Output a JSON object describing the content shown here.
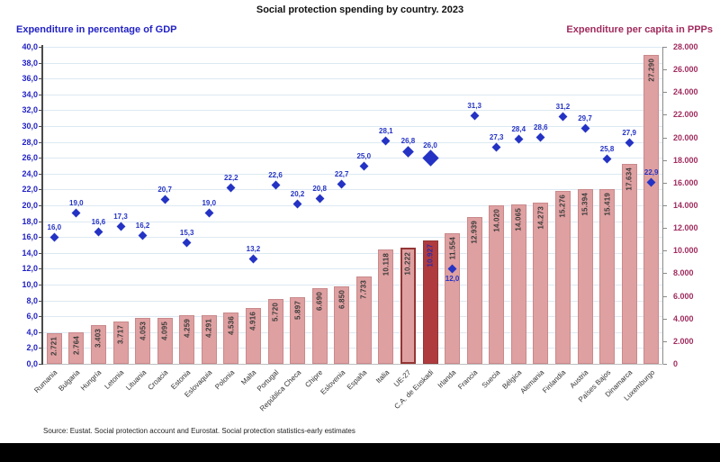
{
  "title": "Social protection spending by country. 2023",
  "source_note": "Source: Eustat. Social protection account and Eurostat. Social protection statistics-early estimates",
  "colors": {
    "left_axis_blue": "#2222C6",
    "point_blue": "#2433C4",
    "right_axis_maroon": "#A02B5E",
    "bar_fill": "#DFA0A1",
    "bar_border": "#C9898B",
    "highlight_border": "#943634",
    "euskadi_fill": "#B03B3E",
    "euskadi_value_label": "#2B2BA8",
    "bar_value_label": "#3A3A3A",
    "gridline": "#DCE9F2",
    "category_label": "#333333"
  },
  "chart_data": {
    "type": "combo bar + scatter (dual axis)",
    "title": "Social protection spending by country. 2023",
    "grid": true,
    "legend_position": "none",
    "categories": [
      "Rumania",
      "Bulgaria",
      "Hungría",
      "Letonia",
      "Lituania",
      "Croacia",
      "Estonia",
      "Eslovaquia",
      "Polonia",
      "Malta",
      "Portugal",
      "República Checa",
      "Chipre",
      "Eslovenia",
      "España",
      "Italia",
      "UE-27",
      "C.A. de Euskadi",
      "Irlanda",
      "Francia",
      "Suecia",
      "Bélgica",
      "Alemania",
      "Finlandia",
      "Austria",
      "Países Bajos",
      "Dinamarca",
      "Luxemburgo"
    ],
    "series": [
      {
        "name": "Expenditure per capita in PPPs",
        "type": "bar",
        "axis": "right",
        "values": [
          2721,
          2764,
          3403,
          3717,
          4053,
          4095,
          4259,
          4291,
          4536,
          4916,
          5720,
          5897,
          6690,
          6850,
          7733,
          10118,
          10222,
          10927,
          11554,
          12939,
          14020,
          14065,
          14273,
          15276,
          15394,
          15419,
          17634,
          27290
        ],
        "labels": [
          "2.721",
          "2.764",
          "3.403",
          "3.717",
          "4.053",
          "4.095",
          "4.259",
          "4.291",
          "4.536",
          "4.916",
          "5.720",
          "5.897",
          "6.690",
          "6.850",
          "7.733",
          "10.118",
          "10.222",
          "10.927",
          "11.554",
          "12.939",
          "14.020",
          "14.065",
          "14.273",
          "15.276",
          "15.394",
          "15.419",
          "17.634",
          "27.290"
        ]
      },
      {
        "name": "Expenditure in percentage of GDP",
        "type": "scatter",
        "axis": "left",
        "values": [
          16.0,
          19.0,
          16.6,
          17.3,
          16.2,
          20.7,
          15.3,
          19.0,
          22.2,
          13.2,
          22.6,
          20.2,
          20.8,
          22.7,
          25.0,
          28.1,
          26.8,
          26.0,
          12.0,
          31.3,
          27.3,
          28.4,
          28.6,
          31.2,
          29.7,
          25.8,
          27.9,
          22.9
        ],
        "labels": [
          "16,0",
          "19,0",
          "16,6",
          "17,3",
          "16,2",
          "20,7",
          "15,3",
          "19,0",
          "22,2",
          "13,2",
          "22,6",
          "20,2",
          "20,8",
          "22,7",
          "25,0",
          "28,1",
          "26,8",
          "26,0",
          "12,0",
          "31,3",
          "27,3",
          "28,4",
          "28,6",
          "31,2",
          "29,7",
          "25,8",
          "27,9",
          "22,9"
        ]
      }
    ],
    "left_axis": {
      "title": "Expenditure in percentage of GDP",
      "range": [
        0,
        40
      ],
      "step": 2,
      "tick_labels_top_to_bottom": [
        "40,0",
        "38,0",
        "36,0",
        "34,0",
        "32,0",
        "30,0",
        "28,0",
        "26,0",
        "24,0",
        "22,0",
        "20,0",
        "18,0",
        "16,0",
        "14,0",
        "12,0",
        "10,0",
        "8,0",
        "6,0",
        "4,0",
        "2,0",
        "0,0"
      ]
    },
    "right_axis": {
      "title": "Expenditure per capita in PPPs",
      "range": [
        0,
        28000
      ],
      "step": 2000,
      "tick_labels_top_to_bottom": [
        "28.000",
        "26.000",
        "24.000",
        "22.000",
        "20.000",
        "18.000",
        "16.000",
        "14.000",
        "12.000",
        "10.000",
        "8.000",
        "6.000",
        "4.000",
        "2.000",
        "0"
      ]
    },
    "highlights": {
      "outlined_bar_category": "UE-27",
      "outlined_bar_index": 16,
      "solid_dark_bar_category": "C.A. de Euskadi",
      "solid_dark_bar_index": 17,
      "point_label_below_index": 18,
      "medium_diamond_index": 16,
      "large_diamond_index": 17
    }
  }
}
